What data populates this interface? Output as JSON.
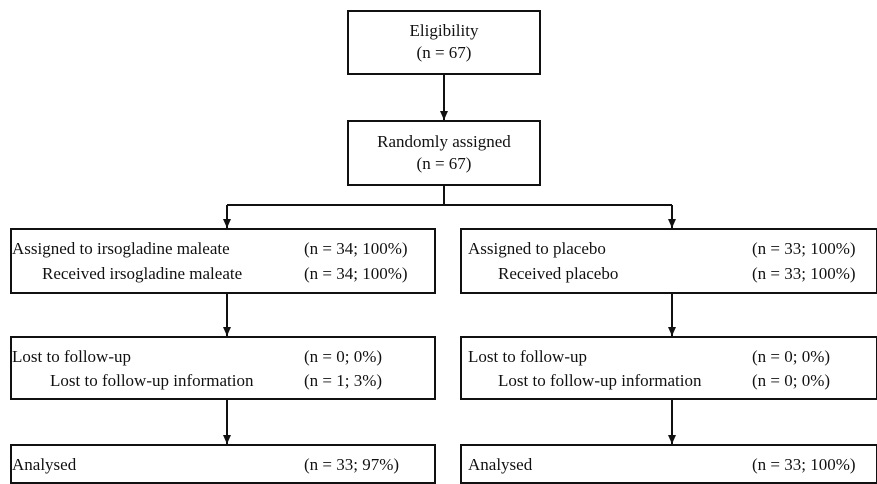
{
  "eligibility": {
    "title": "Eligibility",
    "count": "(n = 67)"
  },
  "randomised": {
    "title": "Randomly assigned",
    "count": "(n = 67)"
  },
  "left_arm": {
    "assigned": {
      "label": "Assigned to irsogladine maleate",
      "value": "(n = 34; 100%)"
    },
    "received": {
      "label": "Received irsogladine maleate",
      "value": "(n = 34; 100%)"
    },
    "lost": {
      "label": "Lost to follow-up",
      "value": "(n = 0; 0%)"
    },
    "lost_info": {
      "label": "Lost to follow-up information",
      "value": "(n = 1; 3%)"
    },
    "analysed": {
      "label": "Analysed",
      "value": "(n = 33; 97%)"
    }
  },
  "right_arm": {
    "assigned": {
      "label": "Assigned to placebo",
      "value": "(n = 33; 100%)"
    },
    "received": {
      "label": "Received placebo",
      "value": "(n = 33; 100%)"
    },
    "lost": {
      "label": "Lost to follow-up",
      "value": "(n = 0; 0%)"
    },
    "lost_info": {
      "label": "Lost to follow-up information",
      "value": "(n = 0; 0%)"
    },
    "analysed": {
      "label": "Analysed",
      "value": "(n = 33; 100%)"
    }
  }
}
